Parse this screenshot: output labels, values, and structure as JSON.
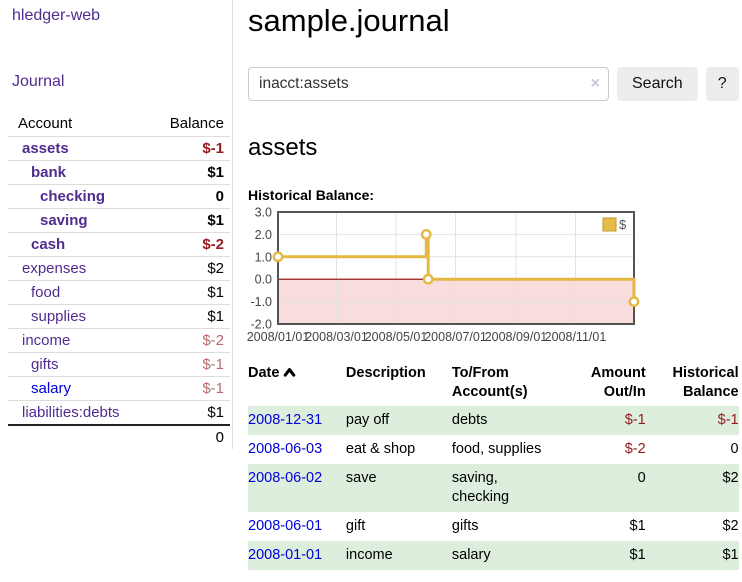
{
  "sidebar": {
    "brand": "hledger-web",
    "nav": {
      "journal": "Journal"
    },
    "accounts_table": {
      "headers": {
        "account": "Account",
        "balance": "Balance"
      },
      "rows": [
        {
          "account": "assets",
          "balance": "$-1",
          "depth": 1,
          "bold": true
        },
        {
          "account": "bank",
          "balance": "$1",
          "depth": 2,
          "bold": true
        },
        {
          "account": "checking",
          "balance": "0",
          "depth": 3,
          "bold": true
        },
        {
          "account": "saving",
          "balance": "$1",
          "depth": 3,
          "bold": true
        },
        {
          "account": "cash",
          "balance": "$-2",
          "depth": 2,
          "bold": true
        },
        {
          "account": "expenses",
          "balance": "$2",
          "depth": 1,
          "bold": false
        },
        {
          "account": "food",
          "balance": "$1",
          "depth": 2,
          "bold": false
        },
        {
          "account": "supplies",
          "balance": "$1",
          "depth": 2,
          "bold": false
        },
        {
          "account": "income",
          "balance": "$-2",
          "depth": 1,
          "bold": false
        },
        {
          "account": "gifts",
          "balance": "$-1",
          "depth": 2,
          "bold": false
        },
        {
          "account": "salary",
          "balance": "$-1",
          "depth": 2,
          "bold": false
        },
        {
          "account": "liabilities:debts",
          "balance": "$1",
          "depth": 1,
          "bold": false
        }
      ],
      "total": "0"
    }
  },
  "header": {
    "title": "sample.journal"
  },
  "search": {
    "query": "inacct:assets",
    "clear_label": "×",
    "button": "Search",
    "help_button": "?"
  },
  "account_page": {
    "title": "assets",
    "chart_label": "Historical Balance:"
  },
  "chart_data": {
    "type": "line",
    "title": "Historical Balance:",
    "series": [
      {
        "name": "$",
        "step": true,
        "points": [
          [
            "2008-01-01",
            1
          ],
          [
            "2008-06-01",
            2
          ],
          [
            "2008-06-03",
            0
          ],
          [
            "2008-12-31",
            -1
          ]
        ]
      }
    ],
    "x_ticks": [
      "2008/01/01",
      "2008/03/01",
      "2008/05/01",
      "2008/07/01",
      "2008/09/01",
      "2008/11/01"
    ],
    "y_ticks": [
      3.0,
      2.0,
      1.0,
      0.0,
      -1.0,
      -2.0
    ],
    "y_tick_labels": [
      "3.0",
      "2.0",
      "1.0",
      "0.0",
      "-1.0",
      "-2.0"
    ],
    "ylim": [
      -2,
      3
    ],
    "x_start": "2008-01-01",
    "x_span_days": 365,
    "legend_position": "top-right",
    "grid": true,
    "line_color": "#e4b843",
    "marker_fill": "#ffffff",
    "legend_fill": "#e7bd48",
    "legend_border": "#c29b2c",
    "negative_region_fill": "#f9dcdc",
    "zero_line_color": "#8b0000",
    "grid_color": "#e2e2e2",
    "border_color": "#545454",
    "tick_text_color": "#444444"
  },
  "register": {
    "headers": {
      "date": "Date",
      "description": "Description",
      "accounts": "To/From\nAccount(s)",
      "amount": "Amount\nOut/In",
      "balance": "Historical\nBalance"
    },
    "rows": [
      {
        "date": "2008-12-31",
        "description": "pay off",
        "accounts": "debts",
        "amount": "$-1",
        "balance": "$-1"
      },
      {
        "date": "2008-06-03",
        "description": "eat & shop",
        "accounts": "food, supplies",
        "amount": "$-2",
        "balance": "0"
      },
      {
        "date": "2008-06-02",
        "description": "save",
        "accounts": "saving,\nchecking",
        "amount": "0",
        "balance": "$2"
      },
      {
        "date": "2008-06-01",
        "description": "gift",
        "accounts": "gifts",
        "amount": "$1",
        "balance": "$2"
      },
      {
        "date": "2008-01-01",
        "description": "income",
        "accounts": "salary",
        "amount": "$1",
        "balance": "$1"
      }
    ]
  },
  "colors": {
    "link_purple": "#512c8f",
    "link_blue": "#0000e0",
    "negative_strong": "#981b1e",
    "negative_soft": "#b76c6c",
    "register_negative": "#8f1d1f",
    "row_stripe_green": "#ddeedd",
    "divider": "#dddddd",
    "button_bg": "#ededed"
  }
}
